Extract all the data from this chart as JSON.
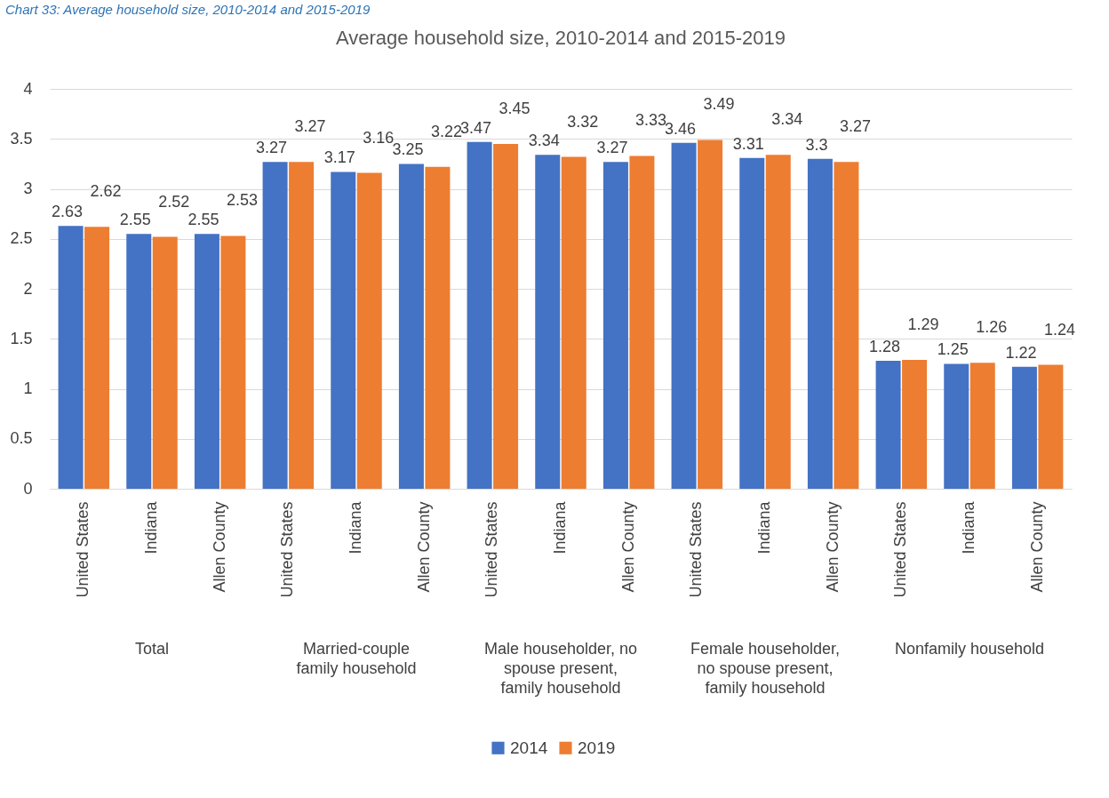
{
  "chart_data": {
    "type": "bar",
    "title": "Average household size, 2010-2014 and 2015-2019",
    "subtitle": "Chart 33: Average household size, 2010-2014 and 2015-2019",
    "categories": [
      "United States",
      "Indiana",
      "Allen County",
      "United States",
      "Indiana",
      "Allen County",
      "United States",
      "Indiana",
      "Allen County",
      "United States",
      "Indiana",
      "Allen County",
      "United States",
      "Indiana",
      "Allen County"
    ],
    "series": [
      {
        "name": "2014",
        "color": "#4472c4",
        "values": [
          2.63,
          2.55,
          2.55,
          3.27,
          3.17,
          3.25,
          3.47,
          3.34,
          3.27,
          3.46,
          3.31,
          3.3,
          1.28,
          1.25,
          1.22
        ]
      },
      {
        "name": "2019",
        "color": "#ed7d31",
        "values": [
          2.62,
          2.52,
          2.53,
          3.27,
          3.16,
          3.22,
          3.45,
          3.32,
          3.33,
          3.49,
          3.34,
          3.27,
          1.29,
          1.26,
          1.24
        ]
      }
    ],
    "annotations": [
      "Total",
      "Married-couple family household",
      "Male householder, no spouse present, family household",
      "Female householder, no spouse present, family household",
      "Nonfamily household"
    ],
    "ylim": [
      0,
      4
    ],
    "yticks": [
      0,
      0.5,
      1,
      1.5,
      2,
      2.5,
      3,
      3.5,
      4
    ],
    "grid": "y",
    "legend": "bottom",
    "data_labels": true
  }
}
